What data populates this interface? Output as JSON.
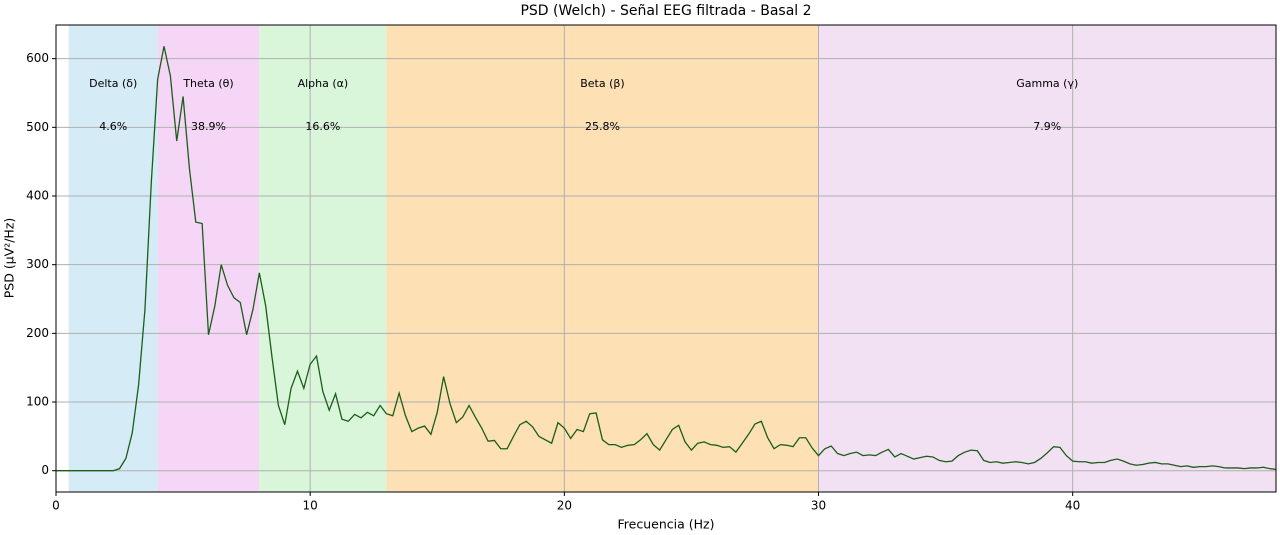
{
  "chart_data": {
    "type": "line",
    "title": "PSD (Welch) - Señal EEG filtrada - Basal 2",
    "x_label": "Frecuencia (Hz)",
    "y_label": "PSD (µV²/Hz)",
    "x": [
      0,
      0.25,
      0.5,
      0.75,
      1,
      1.25,
      1.5,
      1.75,
      2,
      2.25,
      2.5,
      2.75,
      3,
      3.25,
      3.5,
      3.75,
      4,
      4.25,
      4.5,
      4.75,
      5,
      5.25,
      5.5,
      5.75,
      6,
      6.25,
      6.5,
      6.75,
      7,
      7.25,
      7.5,
      7.75,
      8,
      8.25,
      8.5,
      8.75,
      9,
      9.25,
      9.5,
      9.75,
      10,
      10.25,
      10.5,
      10.75,
      11,
      11.25,
      11.5,
      11.75,
      12,
      12.25,
      12.5,
      12.75,
      13,
      13.25,
      13.5,
      13.75,
      14,
      14.25,
      14.5,
      14.75,
      15,
      15.25,
      15.5,
      15.75,
      16,
      16.25,
      16.5,
      16.75,
      17,
      17.25,
      17.5,
      17.75,
      18,
      18.25,
      18.5,
      18.75,
      19,
      19.25,
      19.5,
      19.75,
      20,
      20.25,
      20.5,
      20.75,
      21,
      21.25,
      21.5,
      21.75,
      22,
      22.25,
      22.5,
      22.75,
      23,
      23.25,
      23.5,
      23.75,
      24,
      24.25,
      24.5,
      24.75,
      25,
      25.25,
      25.5,
      25.75,
      26,
      26.25,
      26.5,
      26.75,
      27,
      27.25,
      27.5,
      27.75,
      28,
      28.25,
      28.5,
      28.75,
      29,
      29.25,
      29.5,
      29.75,
      30,
      30.25,
      30.5,
      30.75,
      31,
      31.25,
      31.5,
      31.75,
      32,
      32.25,
      32.5,
      32.75,
      33,
      33.25,
      33.5,
      33.75,
      34,
      34.25,
      34.5,
      34.75,
      35,
      35.25,
      35.5,
      35.75,
      36,
      36.25,
      36.5,
      36.75,
      37,
      37.25,
      37.5,
      37.75,
      38,
      38.25,
      38.5,
      38.75,
      39,
      39.25,
      39.5,
      39.75,
      40,
      40.25,
      40.5,
      40.75,
      41,
      41.25,
      41.5,
      41.75,
      42,
      42.25,
      42.5,
      42.75,
      43,
      43.25,
      43.5,
      43.75,
      44,
      44.25,
      44.5,
      44.75,
      45,
      45.25,
      45.5,
      45.75,
      46,
      46.25,
      46.5,
      46.75,
      47,
      47.25,
      47.5,
      47.75,
      48
    ],
    "values": [
      0,
      0,
      0,
      0,
      0,
      0,
      0,
      0,
      0,
      0,
      3,
      18,
      55,
      125,
      235,
      420,
      570,
      618,
      575,
      480,
      545,
      440,
      362,
      360,
      198,
      240,
      300,
      270,
      252,
      245,
      198,
      235,
      288,
      240,
      165,
      95,
      67,
      120,
      145,
      120,
      155,
      167,
      115,
      88,
      112,
      75,
      72,
      82,
      77,
      85,
      80,
      95,
      83,
      80,
      113,
      80,
      57,
      62,
      65,
      53,
      85,
      137,
      98,
      70,
      78,
      95,
      78,
      62,
      43,
      44,
      32,
      32,
      50,
      67,
      72,
      64,
      50,
      45,
      40,
      70,
      62,
      47,
      60,
      57,
      83,
      84,
      45,
      38,
      38,
      34,
      37,
      38,
      45,
      54,
      38,
      30,
      45,
      60,
      66,
      42,
      30,
      40,
      42,
      38,
      37,
      34,
      35,
      27,
      40,
      53,
      68,
      72,
      48,
      32,
      38,
      37,
      35,
      48,
      48,
      33,
      22,
      32,
      36,
      25,
      22,
      25,
      27,
      22,
      23,
      22,
      27,
      31,
      20,
      25,
      21,
      17,
      19,
      21,
      20,
      15,
      13,
      14,
      22,
      27,
      30,
      29,
      15,
      12,
      13,
      11,
      12,
      13,
      12,
      10,
      12,
      18,
      26,
      35,
      34,
      22,
      14,
      13,
      13,
      11,
      12,
      12,
      15,
      17,
      14,
      10,
      8,
      9,
      11,
      12,
      10,
      10,
      8,
      6,
      7,
      5,
      6,
      6,
      7,
      6,
      4,
      4,
      4,
      3,
      4,
      4,
      5,
      3,
      2
    ],
    "color": "#1a5e1a",
    "xlim": [
      0,
      48
    ],
    "ylim": [
      -31,
      649
    ],
    "xticks": [
      0,
      10,
      20,
      30,
      40
    ],
    "yticks": [
      0,
      100,
      200,
      300,
      400,
      500,
      600
    ],
    "grid": true,
    "bands": [
      {
        "name": "Delta (δ)",
        "range": [
          0.5,
          4
        ],
        "percent": "4.6%",
        "color": "#d5ebf6"
      },
      {
        "name": "Theta (θ)",
        "range": [
          4,
          8
        ],
        "percent": "38.9%",
        "color": "#f6d6f6"
      },
      {
        "name": "Alpha (α)",
        "range": [
          8,
          13
        ],
        "percent": "16.6%",
        "color": "#d9f6da"
      },
      {
        "name": "Beta (β)",
        "range": [
          13,
          30
        ],
        "percent": "25.8%",
        "color": "#fde0b4"
      },
      {
        "name": "Gamma (γ)",
        "range": [
          30,
          48
        ],
        "percent": "7.9%",
        "color": "#f2e0f3"
      }
    ]
  }
}
